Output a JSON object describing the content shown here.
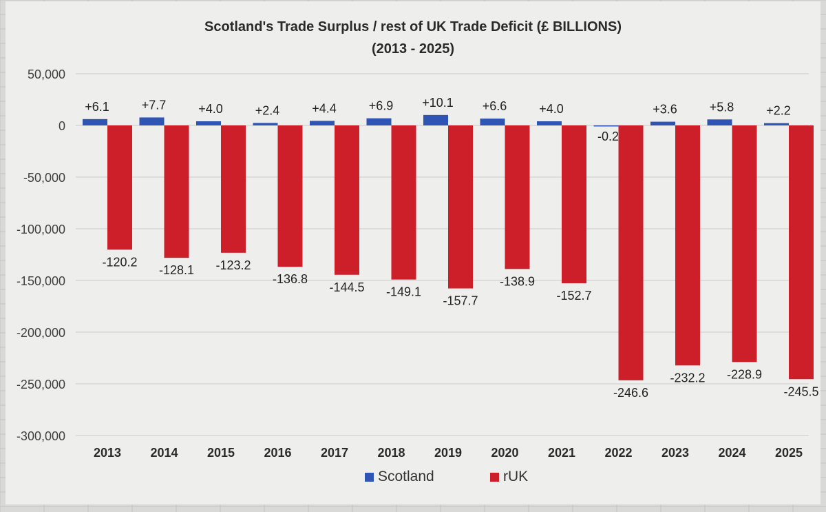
{
  "chart_data": {
    "type": "bar",
    "title": "Scotland's Trade Surplus / rest of UK Trade Deficit  (£ BILLIONS)",
    "subtitle": "(2013 - 2025)",
    "categories": [
      "2013",
      "2014",
      "2015",
      "2016",
      "2017",
      "2018",
      "2019",
      "2020",
      "2021",
      "2022",
      "2023",
      "2024",
      "2025"
    ],
    "series": [
      {
        "name": "Scotland",
        "color": "#2f55b4",
        "values": [
          6.1,
          7.7,
          4.0,
          2.4,
          4.4,
          6.9,
          10.1,
          6.6,
          4.0,
          -0.2,
          3.6,
          5.8,
          2.2
        ],
        "labels": [
          "+6.1",
          "+7.7",
          "+4.0",
          "+2.4",
          "+4.4",
          "+6.9",
          "+10.1",
          "+6.6",
          "+4.0",
          "-0.2",
          "+3.6",
          "+5.8",
          "+2.2"
        ]
      },
      {
        "name": "rUK",
        "color": "#cc1f2a",
        "values": [
          -120.2,
          -128.1,
          -123.2,
          -136.8,
          -144.5,
          -149.1,
          -157.7,
          -138.9,
          -152.7,
          -246.6,
          -232.2,
          -228.9,
          -245.5
        ],
        "labels": [
          "-120.2",
          "-128.1",
          "-123.2",
          "-136.8",
          "-144.5",
          "-149.1",
          "-157.7",
          "-138.9",
          "-152.7",
          "-246.6",
          "-232.2",
          "-228.9",
          "-245.5"
        ]
      }
    ],
    "y_ticks": [
      "50,000",
      "0",
      "-50,000",
      "-100,000",
      "-150,000",
      "-200,000",
      "-250,000",
      "-300,000"
    ],
    "y_tick_values": [
      50,
      0,
      -50,
      -100,
      -150,
      -200,
      -250,
      -300
    ],
    "ylim": [
      -300,
      50
    ],
    "grid": true,
    "legend_position": "bottom"
  }
}
